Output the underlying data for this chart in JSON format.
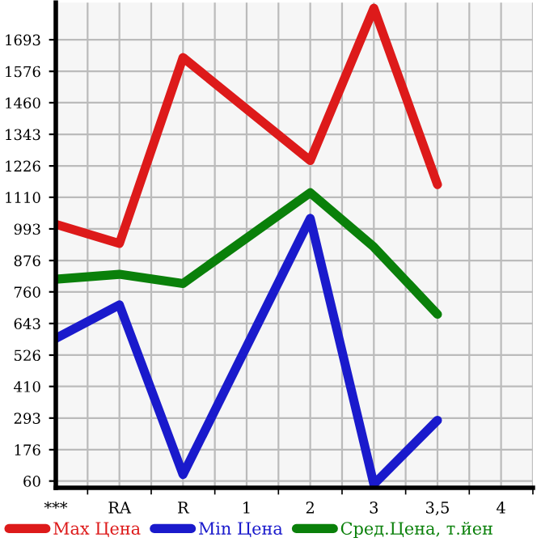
{
  "chart_data": {
    "type": "line",
    "categories": [
      "***",
      "RA",
      "R",
      "1",
      "2",
      "3",
      "3,5",
      "4"
    ],
    "series": [
      {
        "name": "Max Цена",
        "color": "#dd1a1a",
        "values": [
          1010,
          939,
          1627,
          null,
          1246,
          1810,
          1157,
          null
        ]
      },
      {
        "name": "Min Цена",
        "color": "#1a1acc",
        "values": [
          588,
          712,
          84,
          null,
          1032,
          48,
          285,
          null
        ]
      },
      {
        "name": "Сред.Цена, т.йен",
        "color": "#0a800a",
        "values": [
          807,
          825,
          791,
          null,
          1127,
          926,
          677,
          null
        ]
      }
    ],
    "ylim": [
      35,
      1830
    ],
    "yticks": [
      60,
      176,
      293,
      410,
      526,
      643,
      760,
      876,
      993,
      1110,
      1226,
      1343,
      1460,
      1576,
      1693
    ],
    "grid": true,
    "legend": "bottom",
    "marker": "none",
    "line_style": "solid"
  }
}
